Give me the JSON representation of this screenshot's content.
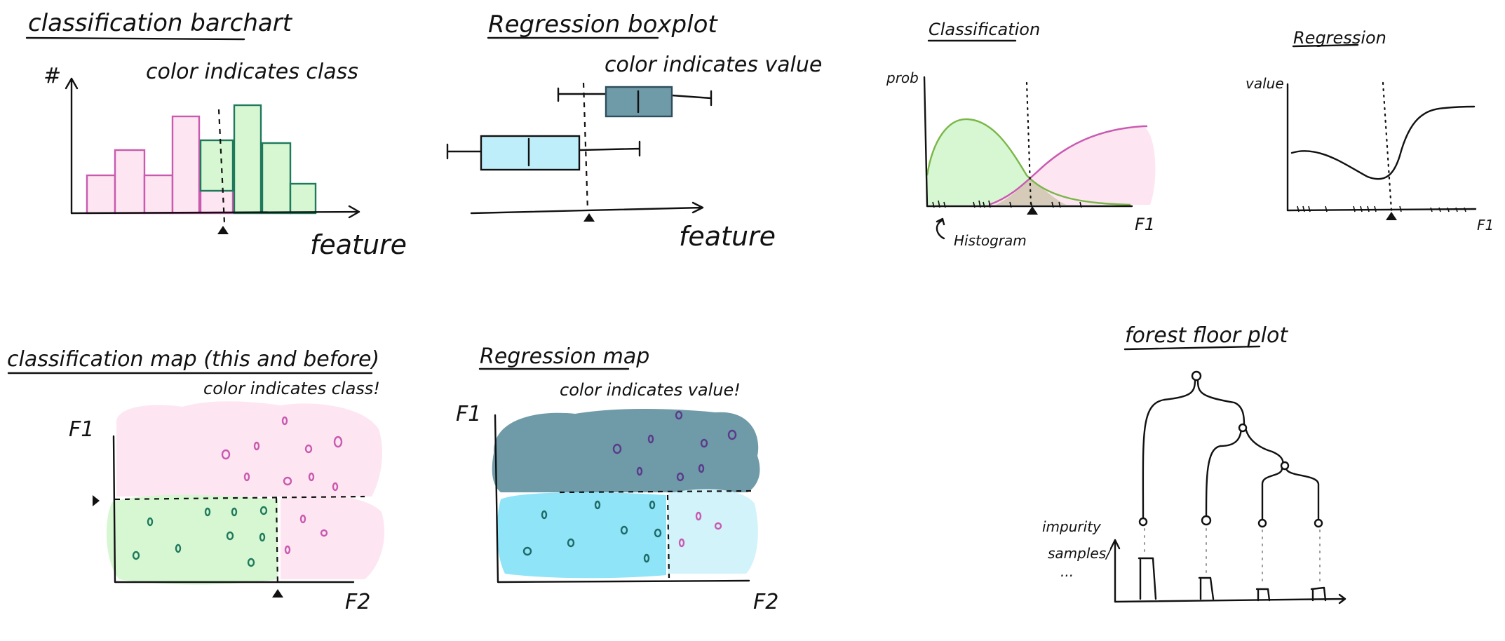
{
  "colors": {
    "pink_fill": "#fde6f1",
    "pink_stroke": "#c95ab0",
    "green_fill": "#d6f7d2",
    "green_stroke": "#1f7a5c",
    "teal_fill": "#6f9aa8",
    "teal_stroke": "#2e4e5c",
    "cyan_fill": "#8fe4f8",
    "cyan_light": "#d3f3fb",
    "purple": "#7a3c9a",
    "curve_green": "#7ab648",
    "curve_pink": "#c95ab0"
  },
  "panels": {
    "bar": {
      "title": "classification barchart",
      "ylabel": "#",
      "note": "color indicates class",
      "xlabel": "feature"
    },
    "box": {
      "title": "Regression boxplot",
      "note": "color indicates value",
      "xlabel": "feature"
    },
    "cls_density": {
      "title": "Classification",
      "ylabel": "prob",
      "xlabel": "F1",
      "annotation": "Histogram"
    },
    "reg_curve": {
      "title": "Regression",
      "ylabel": "value",
      "xlabel": "F1"
    },
    "cls_map": {
      "title": "classification map (this and before)",
      "note": "color indicates class!",
      "ylabel": "F1",
      "xlabel": "F2"
    },
    "reg_map": {
      "title": "Regression map",
      "note": "color indicates value!",
      "ylabel": "F1",
      "xlabel": "F2"
    },
    "forest": {
      "title": "forest floor plot",
      "ylabel_line1": "impurity",
      "ylabel_line2": "samples/",
      "ylabel_line3": "..."
    }
  }
}
